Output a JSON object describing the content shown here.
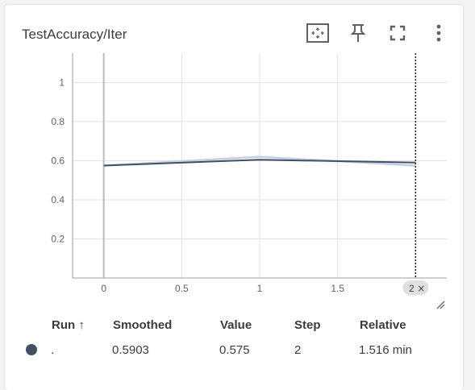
{
  "card": {
    "title": "TestAccuracy/Iter",
    "tools": [
      {
        "name": "fit-domain-icon"
      },
      {
        "name": "pin-icon"
      },
      {
        "name": "fullscreen-icon"
      },
      {
        "name": "more-vert-icon"
      }
    ]
  },
  "chart_data": {
    "type": "line",
    "title": "TestAccuracy/Iter",
    "xlabel": "",
    "ylabel": "",
    "xlim": [
      -0.2,
      2.2
    ],
    "ylim": [
      0,
      1.15
    ],
    "x_ticks": [
      "0",
      "0.5",
      "1",
      "1.5",
      "2"
    ],
    "y_ticks": [
      "0.2",
      "0.4",
      "0.6",
      "0.8",
      "1"
    ],
    "grid": true,
    "hover_x": 2,
    "hover_x_label": "2",
    "series": [
      {
        "x": [
          0,
          1,
          2
        ],
        "values": [
          0.575,
          0.62,
          0.575
        ],
        "color": "#c5cfe0",
        "kind": "raw"
      },
      {
        "x": [
          0,
          1,
          2
        ],
        "values": [
          0.575,
          0.605,
          0.5903
        ],
        "color": "#425066",
        "kind": "smoothed"
      }
    ]
  },
  "table": {
    "headers": {
      "run": "Run ↑",
      "smoothed": "Smoothed",
      "value": "Value",
      "step": "Step",
      "relative": "Relative"
    },
    "rows": [
      {
        "color": "#425066",
        "run": ".",
        "smoothed": "0.5903",
        "value": "0.575",
        "step": "2",
        "relative": "1.516 min"
      }
    ]
  }
}
